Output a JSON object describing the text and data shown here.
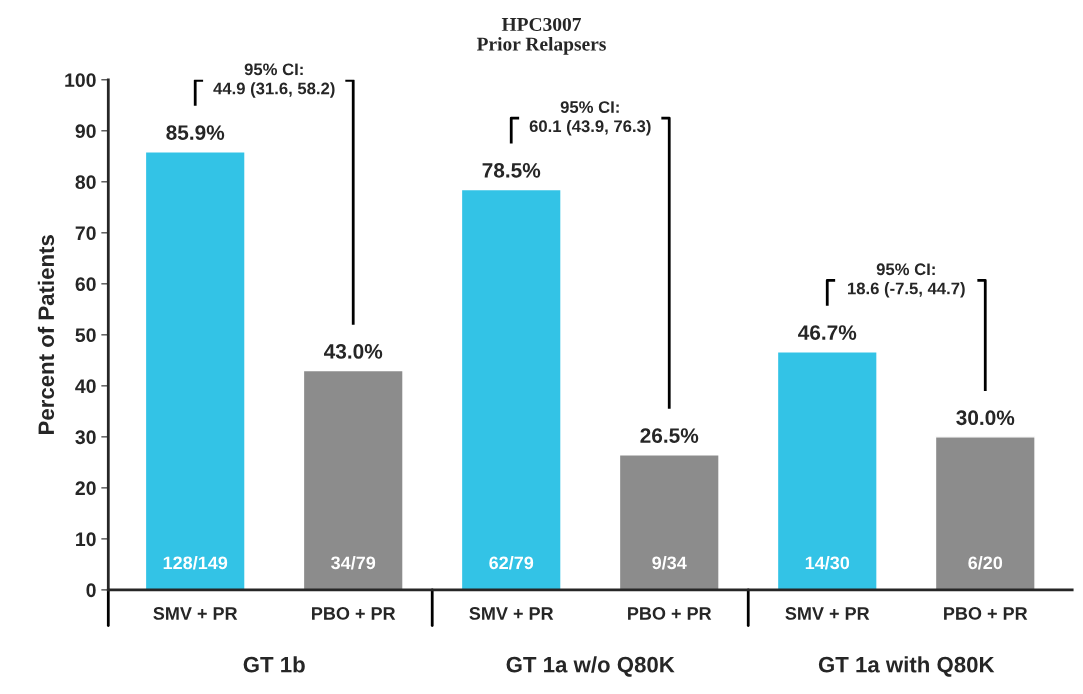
{
  "chart_data": {
    "type": "bar",
    "title": "HPC3007\nPrior Relapsers",
    "ylabel": "Percent of Patients",
    "categories": [
      "SMV + PR",
      "PBO + PR",
      "SMV + PR",
      "PBO + PR",
      "SMV + PR",
      "PBO + PR"
    ],
    "values": [
      85.9,
      43.0,
      78.5,
      26.5,
      46.7,
      30.0
    ],
    "colors": [
      "#33c3e6",
      "#8c8c8c",
      "#33c3e6",
      "#8c8c8c",
      "#33c3e6",
      "#8c8c8c"
    ],
    "value_labels": [
      "85.9%",
      "43.0%",
      "78.5%",
      "26.5%",
      "46.7%",
      "30.0%"
    ],
    "annotations": [
      "GT 1b",
      "GT 1a w/o Q80K",
      "GT 1a with Q80K",
      "95% CI:\n44.9 (31.6, 58.2)",
      "95% CI:\n60.1 (43.9, 76.3)",
      "95% CI:\n18.6 (-7.5, 44.7)",
      "128/149",
      "34/79",
      "62/79",
      "9/34",
      "14/30",
      "6/20"
    ],
    "ylim": [
      0,
      100
    ],
    "yticks": [
      0,
      10,
      20,
      30,
      40,
      50,
      60,
      70,
      80,
      90,
      100
    ],
    "grid": false,
    "legend": false
  }
}
